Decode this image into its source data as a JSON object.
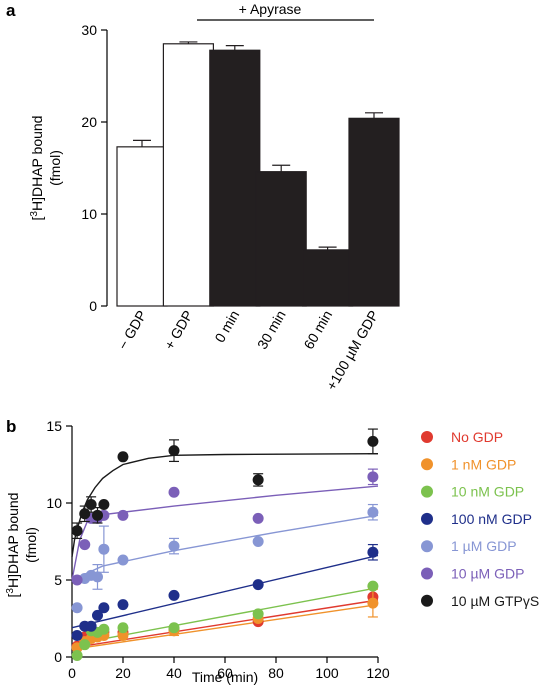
{
  "panels": {
    "a": {
      "letter": "a"
    },
    "b": {
      "letter": "b"
    }
  },
  "chart_data": [
    {
      "panel": "a",
      "type": "bar",
      "categories": [
        "− GDP",
        "+ GDP",
        "0 min",
        "30 min",
        "60 min",
        "+100 µM GDP"
      ],
      "values": [
        17.3,
        28.5,
        27.8,
        14.6,
        6.1,
        20.4
      ],
      "errors": [
        0.7,
        0.2,
        0.5,
        0.7,
        0.3,
        0.6
      ],
      "bar_fill": [
        "white",
        "white",
        "black",
        "black",
        "black",
        "black"
      ],
      "ylabel_line1": "[3H]DHAP bound",
      "ylabel_sup": "3",
      "ylabel_rest": "H]DHAP bound",
      "ylabel_line2": "(fmol)",
      "ylim": [
        0,
        30
      ],
      "yticks": [
        0,
        10,
        20,
        30
      ],
      "bracket_label": "+ Apyrase",
      "bracket_categories": [
        "0 min",
        "30 min",
        "60 min",
        "+100 µM GDP"
      ]
    },
    {
      "panel": "b",
      "type": "scatter",
      "xlabel": "Time (min)",
      "ylabel_sup": "3",
      "ylabel_rest": "H]DHAP bound",
      "ylabel_line2": "(fmol)",
      "xlim": [
        0,
        120
      ],
      "ylim": [
        0,
        15
      ],
      "xticks": [
        0,
        20,
        40,
        60,
        80,
        100,
        120
      ],
      "yticks": [
        0,
        5,
        10,
        15
      ],
      "legend_position": "right",
      "series": [
        {
          "name": "No GDP",
          "color": "#e03a2f",
          "points": [
            [
              2,
              0.7
            ],
            [
              5,
              1.3
            ],
            [
              7.5,
              1.4
            ],
            [
              10,
              1.4
            ],
            [
              12.5,
              1.6
            ],
            [
              20,
              1.6
            ],
            [
              40,
              1.8
            ],
            [
              73,
              2.3
            ],
            [
              118,
              3.9
            ]
          ],
          "fit": [
            [
              0,
              0.6
            ],
            [
              120,
              3.7
            ]
          ]
        },
        {
          "name": "1 nM GDP",
          "color": "#f0922b",
          "points": [
            [
              2,
              0.6
            ],
            [
              5,
              1.0
            ],
            [
              7.5,
              1.2
            ],
            [
              10,
              1.3
            ],
            [
              12.5,
              1.4
            ],
            [
              20,
              1.4
            ],
            [
              40,
              1.7
            ],
            [
              73,
              2.5
            ],
            [
              118,
              3.5
            ]
          ],
          "err": [
            0,
            0,
            0,
            0,
            0,
            0,
            0.3,
            0,
            0.9
          ],
          "fit": [
            [
              0,
              0.5
            ],
            [
              120,
              3.4
            ]
          ]
        },
        {
          "name": "10 nM GDP",
          "color": "#7cc24e",
          "points": [
            [
              2,
              0.1
            ],
            [
              5,
              0.8
            ],
            [
              7.5,
              1.7
            ],
            [
              10,
              1.6
            ],
            [
              12.5,
              1.8
            ],
            [
              20,
              1.9
            ],
            [
              40,
              1.9
            ],
            [
              73,
              2.8
            ],
            [
              118,
              4.6
            ]
          ],
          "fit": [
            [
              0,
              0.8
            ],
            [
              120,
              4.5
            ]
          ]
        },
        {
          "name": "100 nM GDP",
          "color": "#1f2f8a",
          "points": [
            [
              2,
              1.4
            ],
            [
              5,
              2.0
            ],
            [
              7.5,
              2.0
            ],
            [
              10,
              2.7
            ],
            [
              12.5,
              3.2
            ],
            [
              20,
              3.4
            ],
            [
              40,
              4.0
            ],
            [
              73,
              4.7
            ],
            [
              118,
              6.8
            ]
          ],
          "err": [
            0,
            0,
            0,
            0,
            0,
            0,
            0,
            0,
            0.5
          ],
          "fit": [
            [
              0,
              1.9
            ],
            [
              120,
              6.6
            ]
          ]
        },
        {
          "name": "1 µM GDP",
          "color": "#8796d4",
          "points": [
            [
              2,
              3.2
            ],
            [
              5,
              5.1
            ],
            [
              7.5,
              5.3
            ],
            [
              10,
              5.2
            ],
            [
              12.5,
              7.0
            ],
            [
              20,
              6.3
            ],
            [
              40,
              7.2
            ],
            [
              73,
              7.5
            ],
            [
              118,
              9.4
            ]
          ],
          "err": [
            0,
            0,
            0,
            0.8,
            1.5,
            0,
            0.5,
            0,
            0.5
          ],
          "fit": [
            [
              0,
              5.0
            ],
            [
              12,
              5.9
            ],
            [
              40,
              6.9
            ],
            [
              80,
              8.1
            ],
            [
              120,
              9.2
            ]
          ]
        },
        {
          "name": "10 µM GDP",
          "color": "#7b5fb8",
          "points": [
            [
              2,
              5.0
            ],
            [
              5,
              7.3
            ],
            [
              7.5,
              9.0
            ],
            [
              10,
              9.0
            ],
            [
              12.5,
              9.2
            ],
            [
              20,
              9.2
            ],
            [
              40,
              10.7
            ],
            [
              73,
              9.0
            ],
            [
              118,
              11.7
            ]
          ],
          "err": [
            0,
            0,
            0,
            0,
            0,
            0,
            0,
            0,
            0.5
          ],
          "fit": [
            [
              0,
              5.0
            ],
            [
              3,
              7.6
            ],
            [
              6,
              8.8
            ],
            [
              10,
              9.2
            ],
            [
              40,
              9.8
            ],
            [
              80,
              10.5
            ],
            [
              120,
              11.1
            ]
          ]
        },
        {
          "name": "10 µM GTPγS",
          "color": "#1a1a1a",
          "points": [
            [
              2,
              8.2
            ],
            [
              5,
              9.3
            ],
            [
              7.5,
              9.9
            ],
            [
              10,
              9.2
            ],
            [
              12.5,
              9.9
            ],
            [
              20,
              13.0
            ],
            [
              40,
              13.4
            ],
            [
              73,
              11.5
            ],
            [
              118,
              14.0
            ]
          ],
          "err": [
            0.5,
            0.5,
            0.5,
            0.5,
            0,
            0,
            0.7,
            0.4,
            0.8
          ],
          "fit": [
            [
              0,
              6.5
            ],
            [
              1,
              7.6
            ],
            [
              2,
              8.3
            ],
            [
              4,
              9.4
            ],
            [
              6,
              10.2
            ],
            [
              9,
              11.0
            ],
            [
              12,
              11.6
            ],
            [
              16,
              12.1
            ],
            [
              20,
              12.5
            ],
            [
              30,
              12.9
            ],
            [
              40,
              13.1
            ],
            [
              60,
              13.15
            ],
            [
              120,
              13.2
            ]
          ]
        }
      ]
    }
  ]
}
